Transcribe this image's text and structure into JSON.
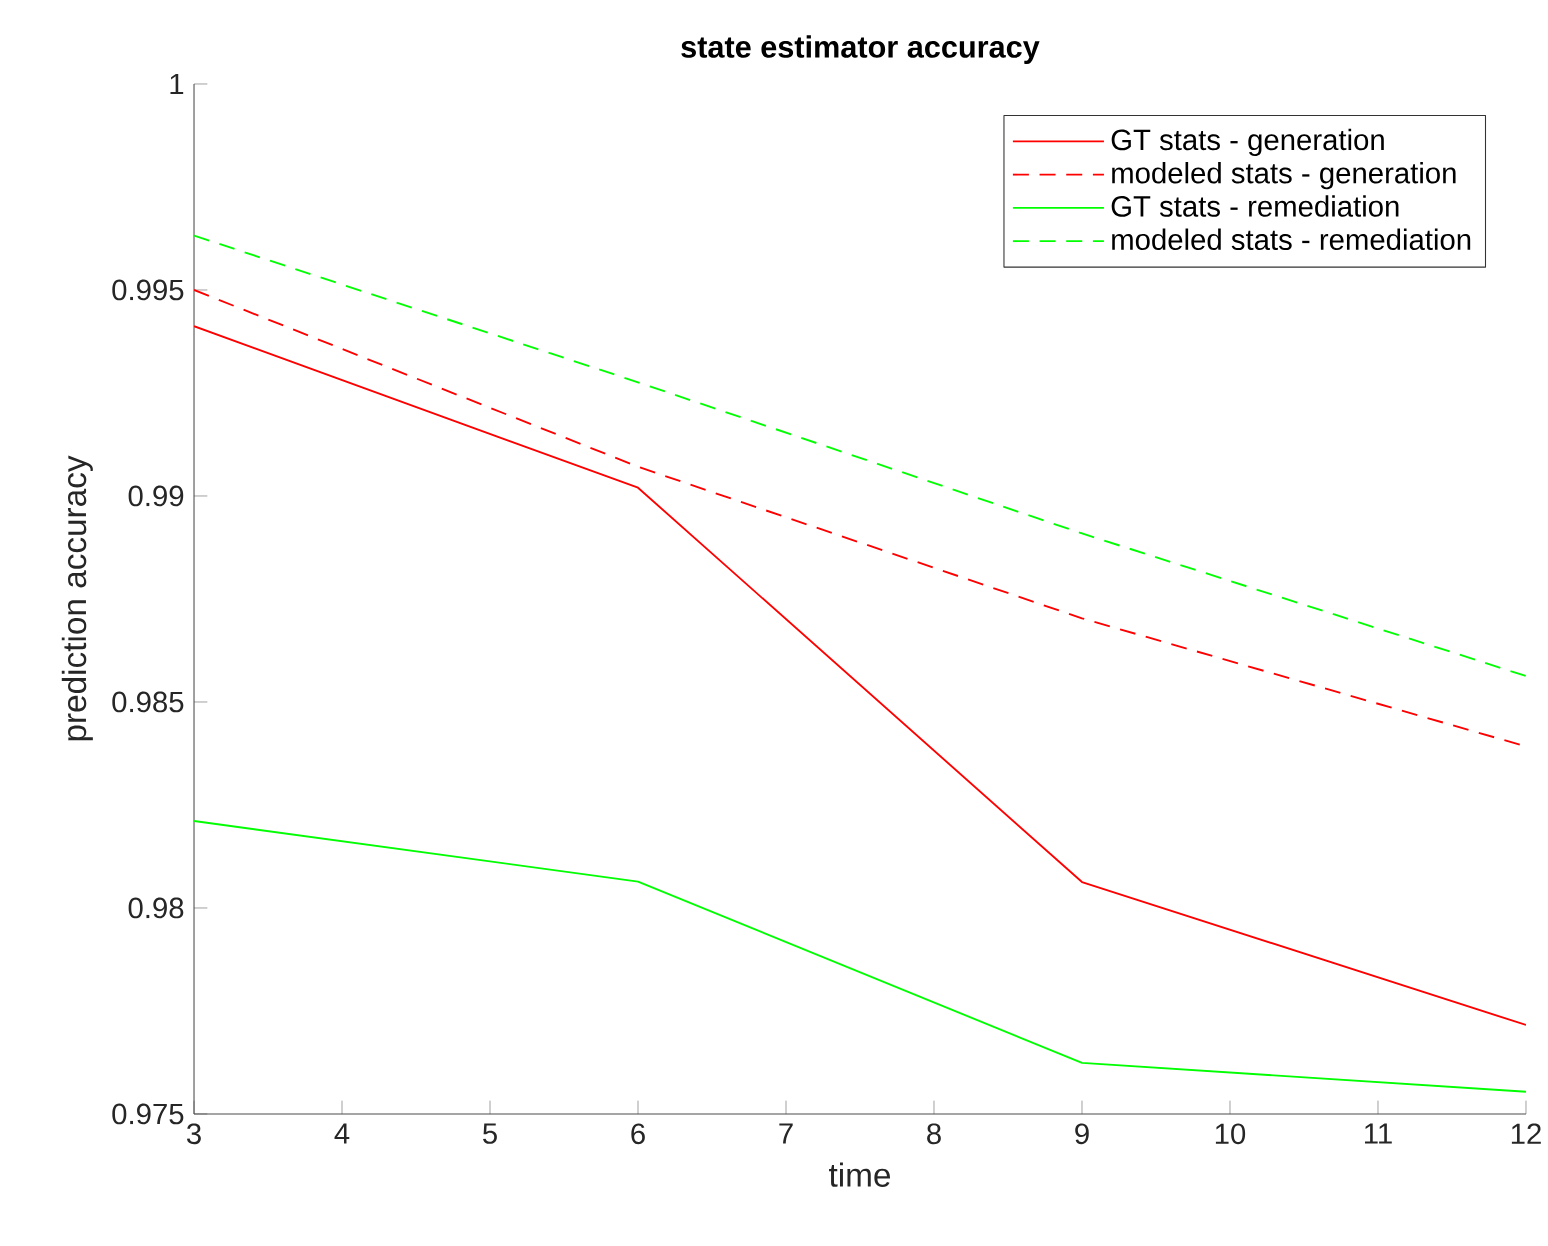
{
  "chart_data": {
    "type": "line",
    "title": "state estimator accuracy",
    "xlabel": "time",
    "ylabel": "prediction accuracy",
    "x": [
      3,
      6,
      9,
      12
    ],
    "series": [
      {
        "name": "GT stats - generation",
        "color": "#ff0000",
        "line_style": "solid",
        "values": [
          0.99412,
          0.9902,
          0.98063,
          0.97716
        ]
      },
      {
        "name": "modeled stats - generation",
        "color": "#ff0000",
        "line_style": "dashed",
        "values": [
          0.995,
          0.99071,
          0.98703,
          0.98392
        ]
      },
      {
        "name": "GT stats - remediation",
        "color": "#00ff00",
        "line_style": "solid",
        "values": [
          0.98211,
          0.98064,
          0.97624,
          0.97554
        ]
      },
      {
        "name": "modeled stats - remediation",
        "color": "#00ff00",
        "line_style": "dashed",
        "values": [
          0.99632,
          0.99276,
          0.98909,
          0.98563
        ]
      }
    ],
    "xlim": [
      3,
      12
    ],
    "xticks": [
      3,
      4,
      5,
      6,
      7,
      8,
      9,
      10,
      11,
      12
    ],
    "ylim": [
      0.975,
      1
    ],
    "yticks": [
      0.975,
      0.98,
      0.985,
      0.99,
      0.995,
      1
    ],
    "legend": "top right"
  }
}
